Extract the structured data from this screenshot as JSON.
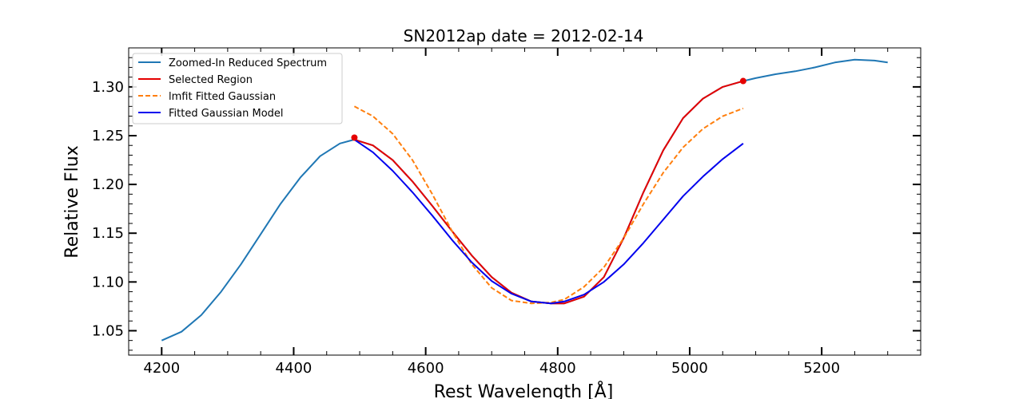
{
  "chart_data": {
    "type": "line",
    "title": "SN2012ap  date = 2012-02-14",
    "xlabel": "Rest Wavelength [Å]",
    "ylabel": "Relative Flux",
    "xlim": [
      4150,
      5350
    ],
    "ylim": [
      1.025,
      1.34
    ],
    "xticks": [
      4200,
      4400,
      4600,
      4800,
      5000,
      5200
    ],
    "yticks": [
      1.05,
      1.1,
      1.15,
      1.2,
      1.25,
      1.3
    ],
    "xtick_labels": [
      "4200",
      "4400",
      "4600",
      "4800",
      "5000",
      "5200"
    ],
    "ytick_labels": [
      "1.05",
      "1.10",
      "1.15",
      "1.20",
      "1.25",
      "1.30"
    ],
    "grid": false,
    "legend_position": "upper-left",
    "series": [
      {
        "name": "Zoomed-In Reduced Spectrum",
        "color": "#1f77b4",
        "dash": "solid",
        "x": [
          4200,
          4230,
          4260,
          4290,
          4320,
          4350,
          4380,
          4410,
          4440,
          4470,
          4492,
          4520,
          4550,
          4580,
          4610,
          4640,
          4670,
          4700,
          4730,
          4760,
          4790,
          4810,
          4840,
          4870,
          4900,
          4930,
          4960,
          4990,
          5020,
          5050,
          5081,
          5100,
          5130,
          5160,
          5190,
          5220,
          5250,
          5280,
          5300
        ],
        "y": [
          1.04,
          1.049,
          1.066,
          1.09,
          1.118,
          1.149,
          1.18,
          1.207,
          1.229,
          1.242,
          1.246,
          1.24,
          1.225,
          1.203,
          1.178,
          1.152,
          1.127,
          1.105,
          1.089,
          1.08,
          1.078,
          1.078,
          1.085,
          1.105,
          1.145,
          1.192,
          1.235,
          1.268,
          1.288,
          1.3,
          1.306,
          1.309,
          1.313,
          1.316,
          1.32,
          1.325,
          1.328,
          1.327,
          1.325
        ]
      },
      {
        "name": "Selected Region",
        "color": "#e50000",
        "dash": "solid",
        "x": [
          4492,
          4520,
          4550,
          4580,
          4610,
          4640,
          4670,
          4700,
          4730,
          4760,
          4790,
          4810,
          4840,
          4870,
          4900,
          4930,
          4960,
          4990,
          5020,
          5050,
          5081
        ],
        "y": [
          1.246,
          1.24,
          1.225,
          1.203,
          1.178,
          1.152,
          1.127,
          1.105,
          1.089,
          1.08,
          1.078,
          1.078,
          1.085,
          1.105,
          1.145,
          1.192,
          1.235,
          1.268,
          1.288,
          1.3,
          1.306
        ]
      },
      {
        "name": "lmfit Fitted Gaussian",
        "color": "#ff7f0e",
        "dash": "dashed",
        "x": [
          4492,
          4520,
          4550,
          4580,
          4610,
          4640,
          4670,
          4700,
          4730,
          4760,
          4790,
          4810,
          4840,
          4870,
          4900,
          4930,
          4960,
          4990,
          5020,
          5050,
          5081
        ],
        "y": [
          1.28,
          1.27,
          1.252,
          1.225,
          1.19,
          1.152,
          1.118,
          1.094,
          1.081,
          1.078,
          1.079,
          1.082,
          1.095,
          1.115,
          1.145,
          1.18,
          1.212,
          1.238,
          1.257,
          1.27,
          1.278
        ]
      },
      {
        "name": "Fitted Gaussian Model",
        "color": "#0000ee",
        "dash": "solid",
        "x": [
          4492,
          4520,
          4550,
          4580,
          4610,
          4640,
          4670,
          4700,
          4730,
          4760,
          4790,
          4810,
          4840,
          4870,
          4900,
          4930,
          4960,
          4990,
          5020,
          5050,
          5081
        ],
        "y": [
          1.246,
          1.233,
          1.214,
          1.192,
          1.168,
          1.143,
          1.12,
          1.101,
          1.088,
          1.08,
          1.078,
          1.08,
          1.087,
          1.1,
          1.118,
          1.14,
          1.164,
          1.188,
          1.208,
          1.226,
          1.242
        ]
      }
    ],
    "markers": [
      {
        "x": 4492,
        "y": 1.248,
        "color": "#e50000"
      },
      {
        "x": 5081,
        "y": 1.306,
        "color": "#e50000"
      }
    ]
  }
}
